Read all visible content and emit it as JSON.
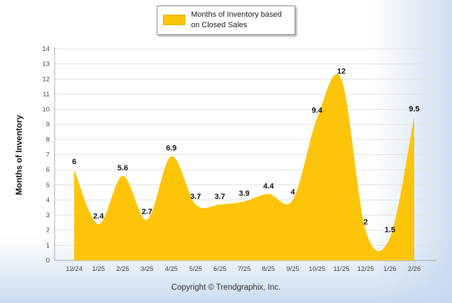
{
  "chart_data": {
    "type": "area",
    "legend": "Months of Inventory based on Closed Sales",
    "ylabel": "Months of Inventory",
    "categories": [
      "12/24",
      "1/25",
      "2/25",
      "3/25",
      "4/25",
      "5/25",
      "6/25",
      "7/25",
      "8/25",
      "9/25",
      "10/25",
      "11/25",
      "12/25",
      "1/26",
      "2/26"
    ],
    "values": [
      6,
      2.4,
      5.6,
      2.7,
      6.9,
      3.7,
      3.7,
      3.9,
      4.4,
      4,
      9.4,
      12,
      2,
      1.5,
      9.5
    ],
    "ylim": [
      0,
      14
    ],
    "grid": true,
    "legend_position": "top-center",
    "fill_color": "#FDC40A",
    "footer": "Copyright © Trendgraphix, Inc."
  }
}
